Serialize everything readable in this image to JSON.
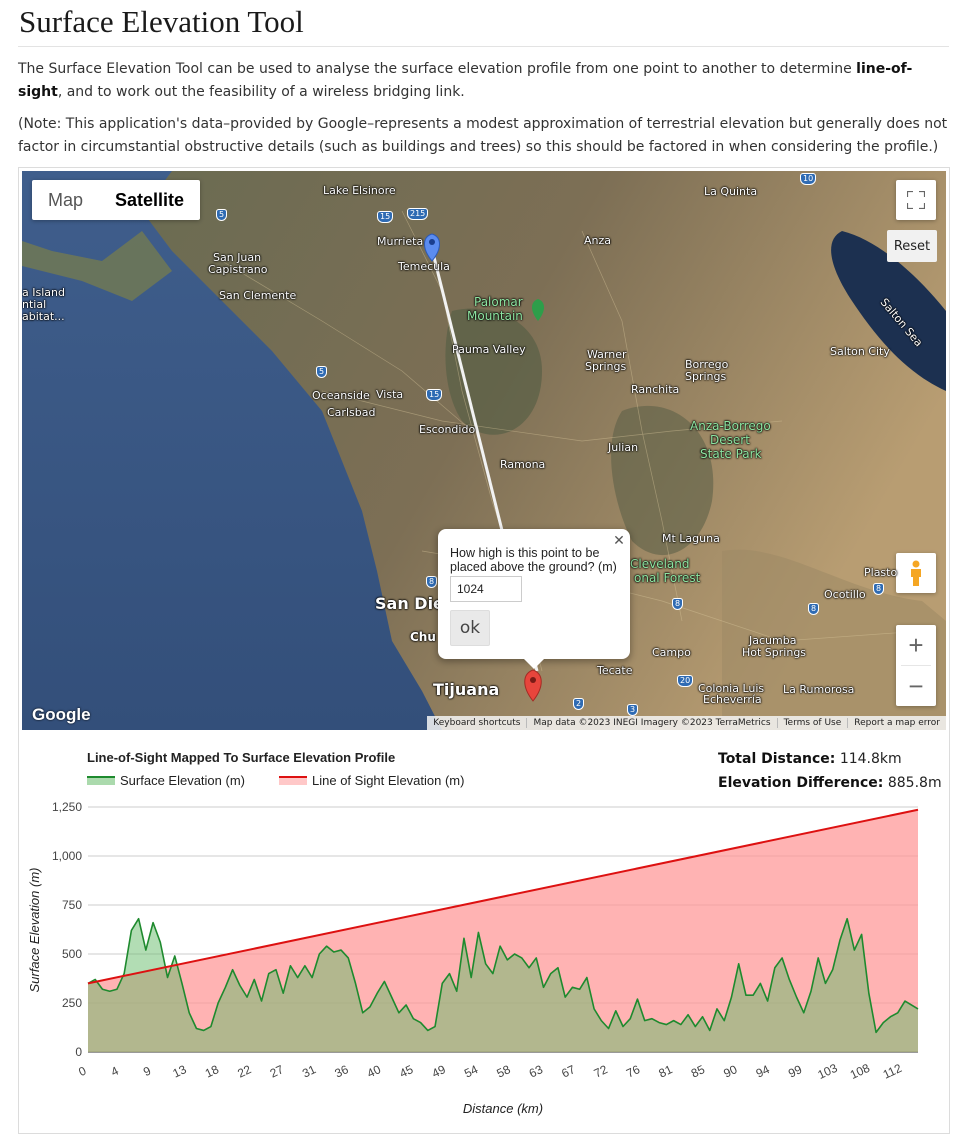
{
  "page": {
    "title": "Surface Elevation Tool",
    "intro_before": "The Surface Elevation Tool can be used to analyse the surface elevation profile from one point to another to determine ",
    "intro_bold": "line-of-sight",
    "intro_after": ", and to work out the feasibility of a wireless bridging link.",
    "note": "(Note: This application's data–provided by Google–represents a modest approximation of terrestrial elevation but generally does not factor in circumstantial obstructive details (such as buildings and trees) so this should be factored in when considering the profile.)"
  },
  "map": {
    "type_map": "Map",
    "type_satellite": "Satellite",
    "reset": "Reset",
    "google": "Google",
    "attribution": [
      "Keyboard shortcuts",
      "Map data ©2023 INEGI Imagery ©2023 TerraMetrics",
      "Terms of Use",
      "Report a map error"
    ],
    "places": {
      "lake_elsinore": "Lake Elsinore",
      "la_quinta": "La Quinta",
      "murrieta": "Murrieta",
      "temecula": "Temecula",
      "anza": "Anza",
      "san_juan": "San Juan",
      "capistrano": "Capistrano",
      "san_clemente": "San Clemente",
      "island_a": "a Island",
      "island_b": "ntial",
      "island_c": "abitat...",
      "palomar": "Palomar",
      "mountain": "Mountain",
      "pauma": "Pauma Valley",
      "warner": "Warner",
      "springs": "Springs",
      "borrego": "Borrego",
      "borrego_springs": "Springs",
      "salton_city": "Salton City",
      "salton_sea": "Salton Sea",
      "ranchita": "Ranchita",
      "oceanside": "Oceanside",
      "vista": "Vista",
      "carlsbad": "Carlsbad",
      "escondido": "Escondido",
      "anza_borrego": "Anza-Borrego",
      "desert": "Desert",
      "state_park": "State Park",
      "julian": "Julian",
      "ramona": "Ramona",
      "mt_laguna": "Mt Laguna",
      "cleveland": "Cleveland",
      "national_forest": "onal Forest",
      "plaster": "Plasto",
      "ocotillo": "Ocotillo",
      "san_diego": "San Die",
      "chula": "Chu",
      "campo": "Campo",
      "jacumba": "Jacumba",
      "hot_springs": "Hot Springs",
      "tecate": "Tecate",
      "tijuana": "Tijuana",
      "colonia": "Colonia Luis",
      "echeverria": "Echeverría",
      "la_rumorosa": "La Rumorosa"
    },
    "shields": [
      "15",
      "215",
      "5",
      "15",
      "10",
      "5",
      "8",
      "8",
      "8",
      "20",
      "2",
      "3",
      "8"
    ],
    "info_window": {
      "question": "How high is this point to be placed above the ground? (m)",
      "value": "1024",
      "ok": "ok"
    },
    "colors": {
      "start_marker": "#5b8cf0",
      "end_marker": "#e8453c",
      "link_line": "#e5e5e5"
    }
  },
  "stats": {
    "distance_label": "Total Distance:",
    "distance_value": "114.8km",
    "elevation_label": "Elevation Difference:",
    "elevation_value": "885.8m"
  },
  "chart_data": {
    "type": "area",
    "title": "Line-of-Sight Mapped To Surface Elevation Profile",
    "xlabel": "Distance (km)",
    "ylabel": "Surface Elevation (m)",
    "xlim": [
      0,
      114.8
    ],
    "ylim": [
      0,
      1250
    ],
    "yticks": [
      0,
      250,
      500,
      750,
      1000,
      1250
    ],
    "ytick_labels": [
      "0",
      "250",
      "500",
      "750",
      "1,000",
      "1,250"
    ],
    "xtick_labels": [
      "0",
      "4",
      "9",
      "13",
      "18",
      "22",
      "27",
      "31",
      "36",
      "40",
      "45",
      "49",
      "54",
      "58",
      "63",
      "67",
      "72",
      "76",
      "81",
      "85",
      "90",
      "94",
      "99",
      "103",
      "108",
      "112"
    ],
    "grid": true,
    "legend_position": "top-left",
    "series": [
      {
        "name": "Surface Elevation (m)",
        "color": "#1e8a2e",
        "fill": "#66bb6a",
        "x": [
          0,
          1,
          2,
          3,
          4,
          5,
          6,
          7,
          8,
          9,
          10,
          11,
          12,
          13,
          14,
          15,
          16,
          17,
          18,
          19,
          20,
          21,
          22,
          23,
          24,
          25,
          26,
          27,
          28,
          29,
          30,
          31,
          32,
          33,
          34,
          35,
          36,
          37,
          38,
          39,
          40,
          41,
          42,
          43,
          44,
          45,
          46,
          47,
          48,
          49,
          50,
          51,
          52,
          53,
          54,
          55,
          56,
          57,
          58,
          59,
          60,
          61,
          62,
          63,
          64,
          65,
          66,
          67,
          68,
          69,
          70,
          71,
          72,
          73,
          74,
          75,
          76,
          77,
          78,
          79,
          80,
          81,
          82,
          83,
          84,
          85,
          86,
          87,
          88,
          89,
          90,
          91,
          92,
          93,
          94,
          95,
          96,
          97,
          98,
          99,
          100,
          101,
          102,
          103,
          104,
          105,
          106,
          107,
          108,
          109,
          110,
          111,
          112,
          113,
          114.8
        ],
        "y": [
          350,
          370,
          320,
          310,
          320,
          400,
          620,
          680,
          520,
          660,
          560,
          380,
          490,
          350,
          200,
          120,
          110,
          130,
          250,
          330,
          420,
          340,
          280,
          370,
          260,
          400,
          420,
          300,
          440,
          380,
          440,
          380,
          500,
          540,
          510,
          520,
          480,
          350,
          200,
          230,
          300,
          360,
          280,
          200,
          240,
          170,
          150,
          110,
          130,
          350,
          400,
          310,
          580,
          380,
          610,
          450,
          400,
          540,
          470,
          500,
          480,
          430,
          480,
          330,
          400,
          430,
          280,
          330,
          320,
          380,
          220,
          160,
          120,
          210,
          130,
          170,
          270,
          160,
          170,
          150,
          140,
          160,
          140,
          190,
          130,
          180,
          110,
          220,
          160,
          280,
          450,
          290,
          290,
          350,
          260,
          430,
          480,
          370,
          280,
          200,
          310,
          480,
          350,
          420,
          570,
          680,
          520,
          600,
          300,
          100,
          150,
          180,
          200,
          260,
          220
        ]
      },
      {
        "name": "Line of Sight Elevation (m)",
        "color": "#dd1111",
        "fill": "#ff9a9a",
        "x": [
          0,
          114.8
        ],
        "y": [
          350,
          1236
        ]
      }
    ]
  }
}
